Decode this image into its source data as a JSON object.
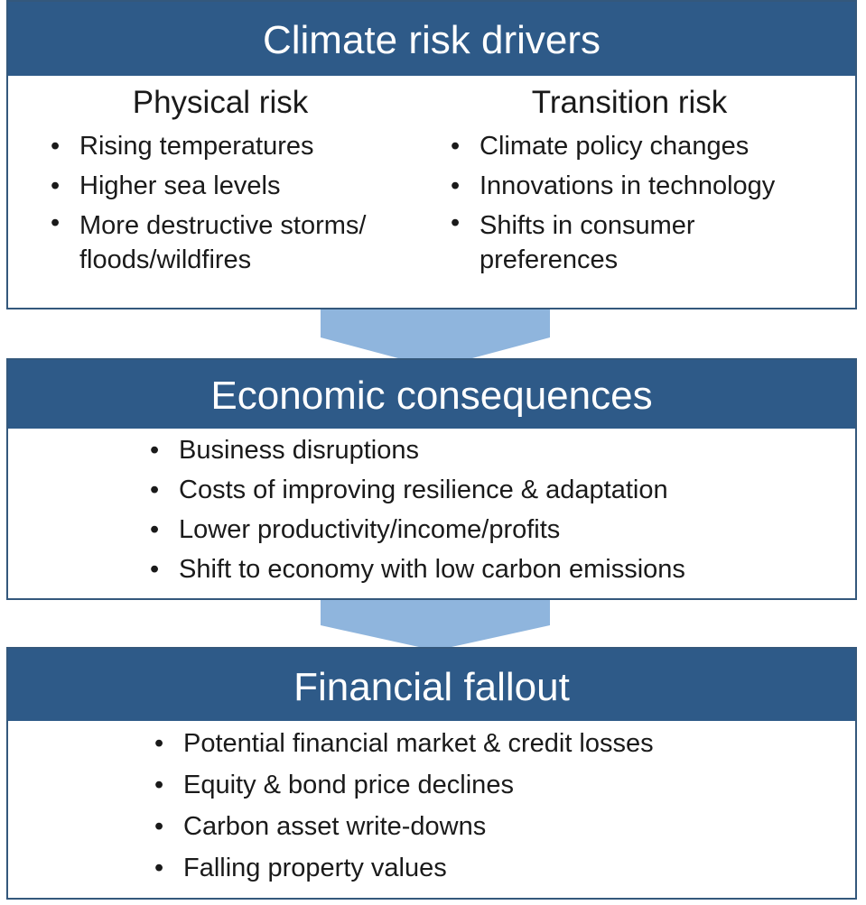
{
  "drivers": {
    "title": "Climate risk drivers",
    "physical": {
      "heading": "Physical risk",
      "items": [
        "Rising temperatures",
        "Higher sea levels",
        "More destructive storms/ floods/wildfires"
      ]
    },
    "transition": {
      "heading": "Transition risk",
      "items": [
        "Climate policy changes",
        "Innovations in technology",
        "Shifts in consumer preferences"
      ]
    }
  },
  "economic": {
    "title": "Economic consequences",
    "items": [
      "Business disruptions",
      "Costs of improving resilience & adaptation",
      "Lower productivity/income/profits",
      "Shift to economy with low carbon emissions"
    ]
  },
  "financial": {
    "title": "Financial fallout",
    "items": [
      "Potential financial market & credit losses",
      "Equity & bond price declines",
      "Carbon asset write-downs",
      "Falling property values"
    ]
  },
  "colors": {
    "header": "#2e5a88",
    "arrow": "#8fb5dd",
    "border": "#34587c"
  }
}
